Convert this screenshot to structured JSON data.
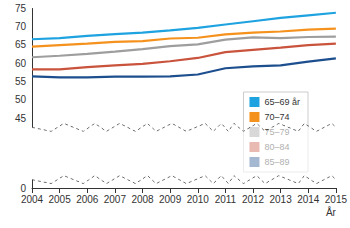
{
  "chart_data": {
    "type": "line",
    "categories": [
      "2004",
      "2005",
      "2006",
      "2007",
      "2008",
      "2009",
      "2010",
      "2011",
      "2012",
      "2013",
      "2014",
      "2015"
    ],
    "x_label": "År",
    "series": [
      {
        "name": "65–69 år",
        "color": "#1fa3e0",
        "values": [
          66.5,
          66.8,
          67.4,
          67.9,
          68.3,
          68.9,
          69.6,
          70.5,
          71.4,
          72.3,
          73.0,
          73.7
        ]
      },
      {
        "name": "70–74",
        "color": "#f5921e",
        "values": [
          64.5,
          64.9,
          65.3,
          65.8,
          66.0,
          66.7,
          66.9,
          67.8,
          68.3,
          68.6,
          69.1,
          69.4
        ]
      },
      {
        "name": "75–79",
        "color": "#9e9e9e",
        "values": [
          61.6,
          62.0,
          62.5,
          63.1,
          63.8,
          64.6,
          65.1,
          66.4,
          67.0,
          66.8,
          67.1,
          67.2
        ]
      },
      {
        "name": "80–84",
        "color": "#c9533c",
        "values": [
          58.3,
          58.3,
          58.9,
          59.4,
          59.8,
          60.5,
          61.4,
          63.0,
          63.6,
          64.2,
          64.9,
          65.3
        ]
      },
      {
        "name": "85–89",
        "color": "#1d4f8f",
        "values": [
          56.4,
          56.1,
          56.1,
          56.3,
          56.3,
          56.4,
          56.9,
          58.6,
          59.1,
          59.4,
          60.4,
          61.3
        ]
      }
    ],
    "ylim": [
      0,
      75
    ],
    "yticks": [
      0,
      45,
      50,
      55,
      60,
      65,
      70,
      75
    ],
    "grid": false,
    "legend": "right"
  }
}
